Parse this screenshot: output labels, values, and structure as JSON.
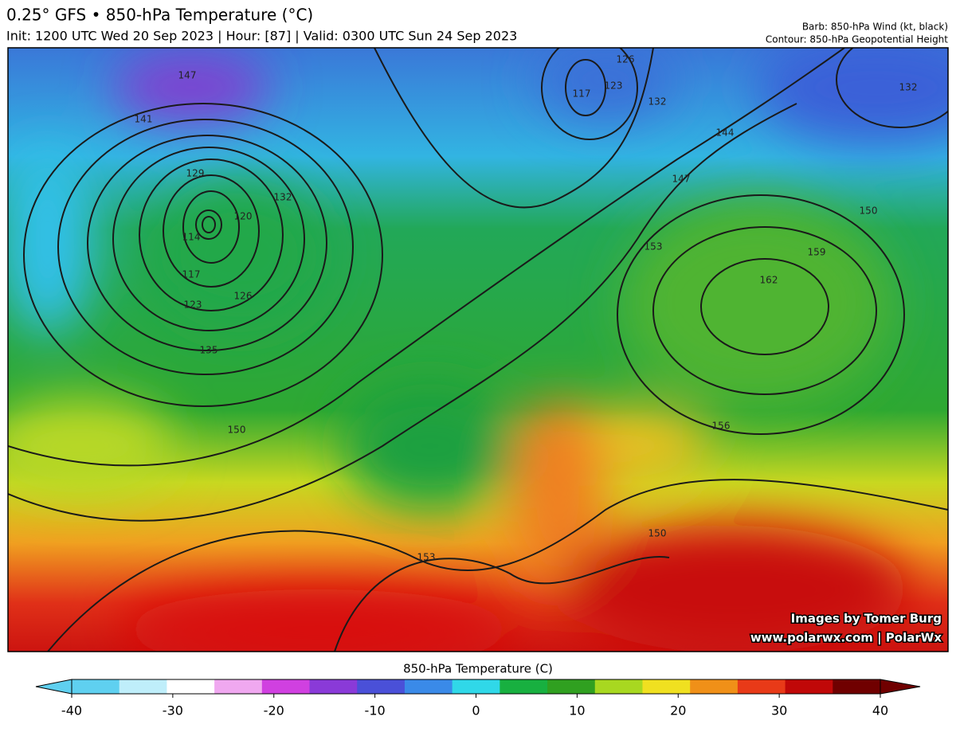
{
  "header": {
    "title": "0.25° GFS • 850-hPa Temperature (°C)",
    "subtitle": "Init: 1200 UTC Wed 20 Sep 2023 | Hour: [87] | Valid: 0300 UTC Sun 24 Sep 2023",
    "barb_note": "Barb: 850-hPa Wind (kt, black)",
    "contour_note": "Contour: 850-hPa Geopotential Height"
  },
  "map": {
    "contour_labels": [
      147,
      141,
      129,
      132,
      120,
      114,
      117,
      123,
      126,
      135,
      150,
      117,
      123,
      126,
      132,
      144,
      147,
      150,
      153,
      159,
      162,
      156,
      150,
      153,
      132
    ],
    "credit": [
      "Images by Tomer Burg",
      "www.polarwx.com | PolarWx"
    ]
  },
  "colorbar": {
    "title": "850-hPa Temperature (C)",
    "range": [
      -40,
      40
    ],
    "ticks": [
      -40,
      -30,
      -20,
      -10,
      0,
      10,
      20,
      30,
      40
    ],
    "colors": [
      "#5fd0f0",
      "#bfeefa",
      "#ffffff",
      "#f0a8f0",
      "#d040e0",
      "#8a3ad8",
      "#4a50d8",
      "#3a8ae8",
      "#30d8e8",
      "#18b040",
      "#30a020",
      "#a8d820",
      "#f0e020",
      "#f09018",
      "#e83a18",
      "#c00808",
      "#700000"
    ]
  }
}
